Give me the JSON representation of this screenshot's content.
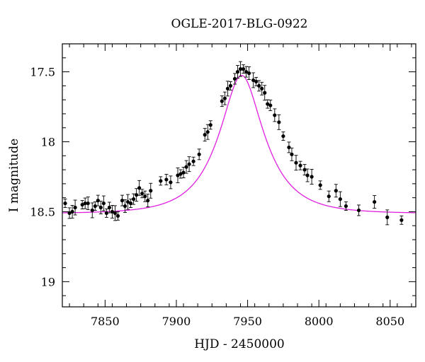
{
  "chart_data": {
    "type": "scatter",
    "title": "OGLE-2017-BLG-0922",
    "xlabel": "HJD - 2450000",
    "ylabel": "I magnitude",
    "xlim": [
      7820,
      8068
    ],
    "ylim": [
      19.18,
      17.3
    ],
    "y_inverted": true,
    "grid": false,
    "x_ticks": [
      7850,
      7900,
      7950,
      8000,
      8050
    ],
    "x_tick_labels": [
      "7850",
      "7900",
      "7950",
      "8000",
      "8050"
    ],
    "y_ticks": [
      17.5,
      18,
      18.5,
      19
    ],
    "y_tick_labels": [
      "17.5",
      "18",
      "18.5",
      "19"
    ],
    "model_color": "#e020e0",
    "point_color": "#000000",
    "model": {
      "name": "",
      "t0": 7945.8,
      "tE": 29.2,
      "u0": 0.43,
      "baseline_mag": 18.513
    },
    "series": [
      {
        "name": "",
        "x": [
          7822,
          7825,
          7827,
          7829,
          7834,
          7836,
          7838,
          7841,
          7843,
          7845,
          7847,
          7849,
          7851,
          7853,
          7855,
          7857,
          7859,
          7862,
          7864,
          7866,
          7868,
          7870,
          7872,
          7874,
          7876,
          7878,
          7880,
          7882,
          7889,
          7893,
          7896,
          7901,
          7903,
          7905,
          7907,
          7909,
          7912,
          7916,
          7920,
          7922,
          7924,
          7932,
          7934,
          7936,
          7938,
          7941,
          7943,
          7945,
          7947,
          7949,
          7951,
          7954,
          7956,
          7958,
          7960,
          7962,
          7964,
          7966,
          7969,
          7972,
          7975,
          7979,
          7981,
          7984,
          7987,
          7990,
          7992,
          7995,
          8001,
          8007,
          8012,
          8015,
          8019,
          8028,
          8039,
          8048,
          8058
        ],
        "y": [
          18.44,
          18.51,
          18.5,
          18.47,
          18.45,
          18.44,
          18.44,
          18.49,
          18.46,
          18.42,
          18.47,
          18.44,
          18.51,
          18.47,
          18.5,
          18.51,
          18.53,
          18.42,
          18.46,
          18.43,
          18.44,
          18.41,
          18.38,
          18.33,
          18.37,
          18.39,
          18.42,
          18.35,
          18.28,
          18.27,
          18.29,
          18.24,
          18.23,
          18.22,
          18.18,
          18.16,
          18.14,
          18.09,
          17.95,
          17.93,
          17.88,
          17.71,
          17.69,
          17.62,
          17.6,
          17.55,
          17.5,
          17.48,
          17.48,
          17.5,
          17.51,
          17.56,
          17.57,
          17.6,
          17.62,
          17.65,
          17.73,
          17.74,
          17.81,
          17.86,
          17.96,
          18.04,
          18.09,
          18.15,
          18.17,
          18.2,
          18.24,
          18.25,
          18.31,
          18.39,
          18.35,
          18.41,
          18.46,
          18.49,
          18.43,
          18.54,
          18.56
        ]
      }
    ]
  }
}
